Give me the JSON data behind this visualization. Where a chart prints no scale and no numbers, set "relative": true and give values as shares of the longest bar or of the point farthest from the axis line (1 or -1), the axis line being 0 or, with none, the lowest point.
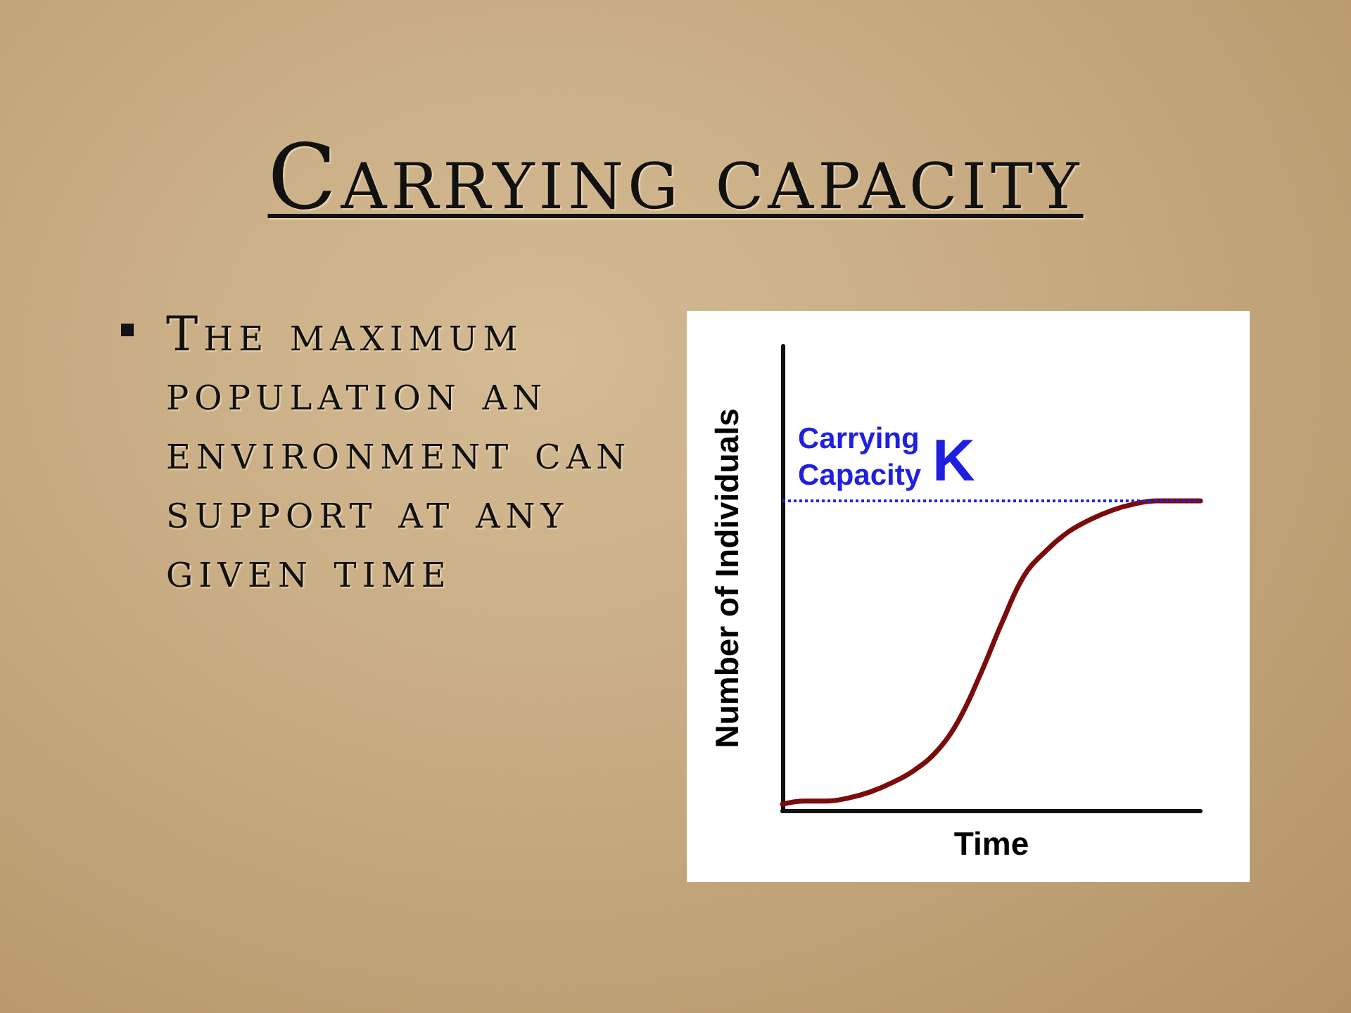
{
  "chart_data": {
    "type": "line",
    "title": "Carrying capacity",
    "annotations": [
      "The maximum population an environment can support at any given time"
    ],
    "xlabel": "Time",
    "ylabel": "Number of Individuals",
    "relative": true,
    "categories": [
      null,
      null,
      null,
      null,
      null,
      null,
      null,
      null,
      null,
      null,
      null,
      null,
      null,
      null,
      null,
      null,
      null,
      null,
      null,
      null
    ],
    "series": [
      {
        "color": "#7b0c0c",
        "values": [
          0.02,
          0.03,
          0.03,
          0.04,
          0.06,
          0.09,
          0.13,
          0.19,
          0.29,
          0.44,
          0.61,
          0.76,
          0.84,
          0.9,
          0.94,
          0.97,
          0.99,
          1,
          1,
          1
        ]
      }
    ],
    "ref_lines": [
      {
        "axis": "y",
        "value": 1,
        "label": "Carrying Capacity K",
        "color": "#1f1fe0",
        "line_style": "dotted"
      }
    ],
    "marker": "none",
    "line_style": "solid"
  }
}
